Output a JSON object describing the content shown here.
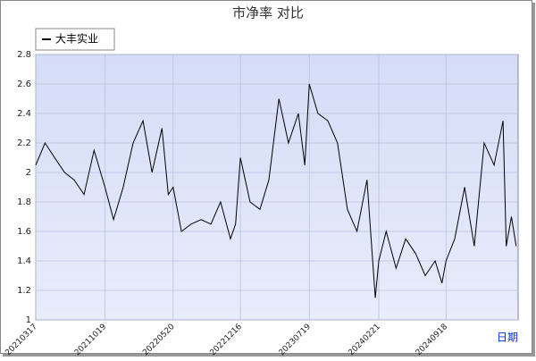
{
  "chart_data": {
    "type": "line",
    "title": "市净率  对比",
    "x_label": "日期",
    "x": [
      "20210317",
      "20210415",
      "20210515",
      "20210615",
      "20210715",
      "20210815",
      "20210915",
      "20211019",
      "20211115",
      "20211215",
      "20220115",
      "20220215",
      "20220315",
      "20220415",
      "20220505",
      "20220520",
      "20220615",
      "20220715",
      "20220815",
      "20220915",
      "20221015",
      "20221115",
      "20221201",
      "20221216",
      "20230115",
      "20230215",
      "20230315",
      "20230415",
      "20230515",
      "20230615",
      "20230705",
      "20230719",
      "20230815",
      "20230915",
      "20231015",
      "20231115",
      "20231215",
      "20240115",
      "20240210",
      "20240221",
      "20240315",
      "20240415",
      "20240515",
      "20240615",
      "20240715",
      "20240815",
      "20240905",
      "20240918",
      "20241015",
      "20241115",
      "20241215",
      "20250115",
      "20250215",
      "20250315",
      "20250325",
      "20250410",
      "20250425"
    ],
    "series": [
      {
        "name": "大丰实业",
        "color": "#000000",
        "values": [
          2.05,
          2.2,
          2.1,
          2.0,
          1.95,
          1.85,
          2.15,
          1.9,
          1.68,
          1.9,
          2.2,
          2.35,
          2.0,
          2.3,
          1.85,
          1.9,
          1.6,
          1.65,
          1.68,
          1.65,
          1.8,
          1.55,
          1.65,
          2.1,
          1.8,
          1.75,
          1.95,
          2.5,
          2.2,
          2.4,
          2.05,
          2.6,
          2.4,
          2.35,
          2.2,
          1.75,
          1.6,
          1.95,
          1.15,
          1.4,
          1.6,
          1.35,
          1.55,
          1.45,
          1.3,
          1.4,
          1.25,
          1.4,
          1.55,
          1.9,
          1.5,
          2.2,
          2.05,
          2.35,
          1.5,
          1.7,
          1.5
        ]
      }
    ],
    "xlim": [
      "20210317",
      "20250501"
    ],
    "xticks": [
      "20210317",
      "20211019",
      "20220520",
      "20221216",
      "20230719",
      "20240221",
      "20240918"
    ],
    "ylim": [
      1.0,
      2.8
    ],
    "yticks": [
      1.0,
      1.2,
      1.4,
      1.6,
      1.8,
      2.0,
      2.2,
      2.4,
      2.6,
      2.8
    ],
    "grid": true
  }
}
